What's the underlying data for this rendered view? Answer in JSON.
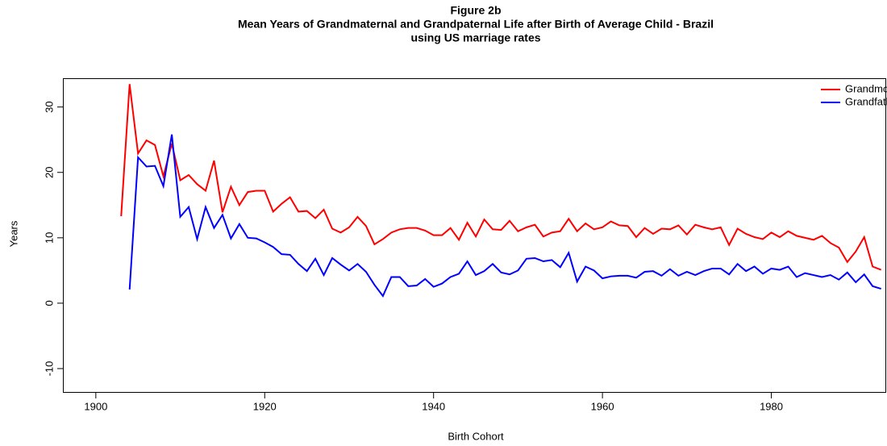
{
  "chart_data": {
    "type": "line",
    "title": [
      "Figure 2b",
      "Mean Years of Grandmaternal and Grandpaternal Life after Birth of Average Child - Brazil",
      "using US marriage rates"
    ],
    "xlabel": "Birth Cohort",
    "ylabel": "Years",
    "x": [
      1903,
      1904,
      1905,
      1906,
      1907,
      1908,
      1909,
      1910,
      1911,
      1912,
      1913,
      1914,
      1915,
      1916,
      1917,
      1918,
      1919,
      1920,
      1921,
      1922,
      1923,
      1924,
      1925,
      1926,
      1927,
      1928,
      1929,
      1930,
      1931,
      1932,
      1933,
      1934,
      1935,
      1936,
      1937,
      1938,
      1939,
      1940,
      1941,
      1942,
      1943,
      1944,
      1945,
      1946,
      1947,
      1948,
      1949,
      1950,
      1951,
      1952,
      1953,
      1954,
      1955,
      1956,
      1957,
      1958,
      1959,
      1960,
      1961,
      1962,
      1963,
      1964,
      1965,
      1966,
      1967,
      1968,
      1969,
      1970,
      1971,
      1972,
      1973,
      1974,
      1975,
      1976,
      1977,
      1978,
      1979,
      1980,
      1981,
      1982,
      1983,
      1984,
      1985,
      1986,
      1987,
      1988,
      1989,
      1990,
      1991,
      1992,
      1993
    ],
    "series": [
      {
        "name": "Grandmother",
        "color": "#ff0000",
        "values": [
          13.3,
          33.5,
          22.9,
          24.9,
          24.2,
          19.4,
          24.4,
          18.8,
          19.6,
          18.2,
          17.2,
          21.8,
          13.9,
          17.8,
          15.0,
          17.0,
          17.2,
          17.2,
          14.0,
          15.2,
          16.2,
          14.0,
          14.1,
          13.0,
          14.3,
          11.4,
          10.8,
          11.6,
          13.2,
          11.8,
          9.0,
          9.8,
          10.8,
          11.3,
          11.5,
          11.5,
          11.1,
          10.4,
          10.4,
          11.5,
          9.7,
          12.3,
          10.2,
          12.8,
          11.3,
          11.2,
          12.6,
          11.0,
          11.6,
          12.0,
          10.2,
          10.8,
          11.0,
          12.9,
          11.0,
          12.2,
          11.3,
          11.6,
          12.5,
          11.9,
          11.8,
          10.1,
          11.5,
          10.6,
          11.4,
          11.3,
          11.9,
          10.5,
          12.0,
          11.6,
          11.3,
          11.6,
          8.9,
          11.4,
          10.6,
          10.1,
          9.8,
          10.8,
          10.1,
          11.0,
          10.3,
          10.0,
          9.7,
          10.3,
          9.2,
          8.5,
          6.3,
          7.9,
          10.1,
          5.6,
          5.1
        ]
      },
      {
        "name": "Grandfather",
        "color": "#0000ff",
        "values": [
          null,
          2.1,
          22.3,
          20.9,
          21.0,
          17.9,
          25.8,
          13.2,
          14.7,
          9.8,
          14.7,
          11.5,
          13.5,
          9.9,
          12.1,
          10.0,
          9.9,
          9.3,
          8.6,
          7.5,
          7.4,
          6.0,
          4.9,
          6.8,
          4.3,
          6.9,
          5.9,
          5.0,
          6.0,
          4.8,
          2.8,
          1.1,
          4.0,
          4.0,
          2.6,
          2.7,
          3.7,
          2.5,
          3.0,
          4.0,
          4.5,
          6.4,
          4.3,
          4.9,
          6.0,
          4.7,
          4.4,
          5.0,
          6.8,
          6.9,
          6.4,
          6.6,
          5.5,
          7.7,
          3.3,
          5.6,
          5.0,
          3.8,
          4.1,
          4.2,
          4.2,
          3.9,
          4.8,
          4.9,
          4.2,
          5.2,
          4.2,
          4.8,
          4.3,
          4.9,
          5.3,
          5.3,
          4.4,
          6.0,
          4.9,
          5.6,
          4.5,
          5.3,
          5.1,
          5.6,
          4.0,
          4.6,
          4.3,
          4.0,
          4.3,
          3.6,
          4.7,
          3.2,
          4.4,
          2.6,
          2.2
        ]
      }
    ],
    "xlim": [
      1896.1,
      1993.7
    ],
    "ylim": [
      -13.7,
      34.4
    ],
    "xticks": [
      1900,
      1920,
      1940,
      1960,
      1980
    ],
    "yticks": [
      -10,
      0,
      10,
      20,
      30
    ],
    "legend": "top-right",
    "grid": false
  }
}
